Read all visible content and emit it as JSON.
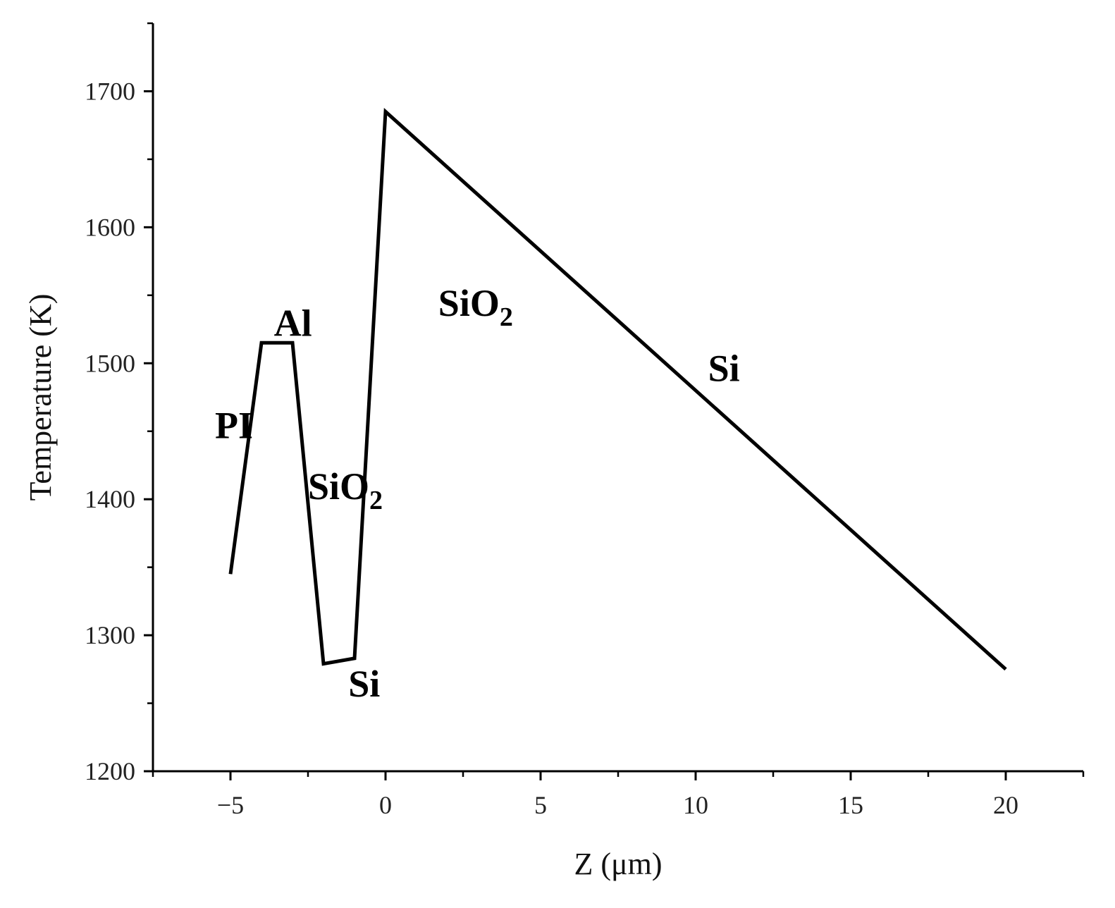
{
  "chart_data": {
    "type": "line",
    "xlabel": "Z (μm)",
    "ylabel": "Temperature (K)",
    "xlim": [
      -7.5,
      22.5
    ],
    "ylim": [
      1200,
      1750
    ],
    "x_ticks": [
      -5,
      0,
      5,
      10,
      15,
      20
    ],
    "x_tick_labels": [
      "−5",
      "0",
      "5",
      "10",
      "15",
      "20"
    ],
    "y_ticks": [
      1200,
      1300,
      1400,
      1500,
      1600,
      1700
    ],
    "y_tick_labels": [
      "1200",
      "1300",
      "1400",
      "1500",
      "1600",
      "1700"
    ],
    "x_minor_ticks": [
      -7.5,
      -2.5,
      2.5,
      7.5,
      12.5,
      17.5,
      22.5
    ],
    "y_minor_ticks": [
      1250,
      1350,
      1450,
      1550,
      1650,
      1750
    ],
    "grid": false,
    "series": [
      {
        "color": "#000000",
        "x": [
          -5,
          -4,
          -3,
          -2,
          -1,
          0,
          20
        ],
        "y": [
          1345,
          1515,
          1515,
          1279,
          1283,
          1685,
          1275
        ]
      }
    ],
    "annotations": [
      {
        "text": "PI",
        "sub": "",
        "x": -5.5,
        "y": 1445
      },
      {
        "text": "Al",
        "sub": "",
        "x": -3.6,
        "y": 1520
      },
      {
        "text": "SiO",
        "sub": "2",
        "x": -2.5,
        "y": 1400
      },
      {
        "text": "Si",
        "sub": "",
        "x": -1.2,
        "y": 1255
      },
      {
        "text": "SiO",
        "sub": "2",
        "x": 1.7,
        "y": 1535
      },
      {
        "text": "Si",
        "sub": "",
        "x": 10.4,
        "y": 1487
      }
    ]
  }
}
